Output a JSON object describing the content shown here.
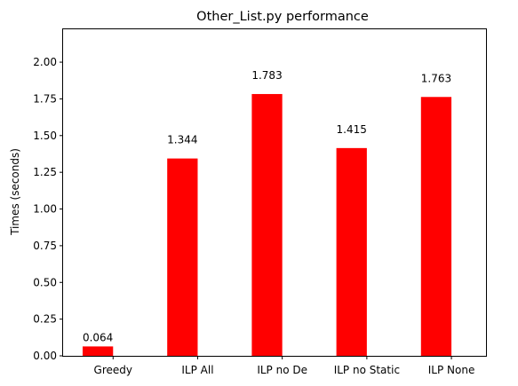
{
  "chart_data": {
    "type": "bar",
    "title": "Other_List.py performance",
    "xlabel": "",
    "ylabel": "Times (seconds)",
    "categories": [
      "Greedy",
      "ILP All",
      "ILP no De",
      "ILP no Static",
      "ILP None"
    ],
    "values": [
      0.064,
      1.344,
      1.783,
      1.415,
      1.763
    ],
    "value_labels": [
      "0.064",
      "1.344",
      "1.783",
      "1.415",
      "1.763"
    ],
    "ylim": [
      0,
      2.23
    ],
    "yticks": [
      0.0,
      0.25,
      0.5,
      0.75,
      1.0,
      1.25,
      1.5,
      1.75,
      2.0
    ],
    "ytick_labels": [
      "0.00",
      "0.25",
      "0.50",
      "0.75",
      "1.00",
      "1.25",
      "1.50",
      "1.75",
      "2.00"
    ],
    "grid": false,
    "legend": "none",
    "bar_color": "#ff0000"
  }
}
